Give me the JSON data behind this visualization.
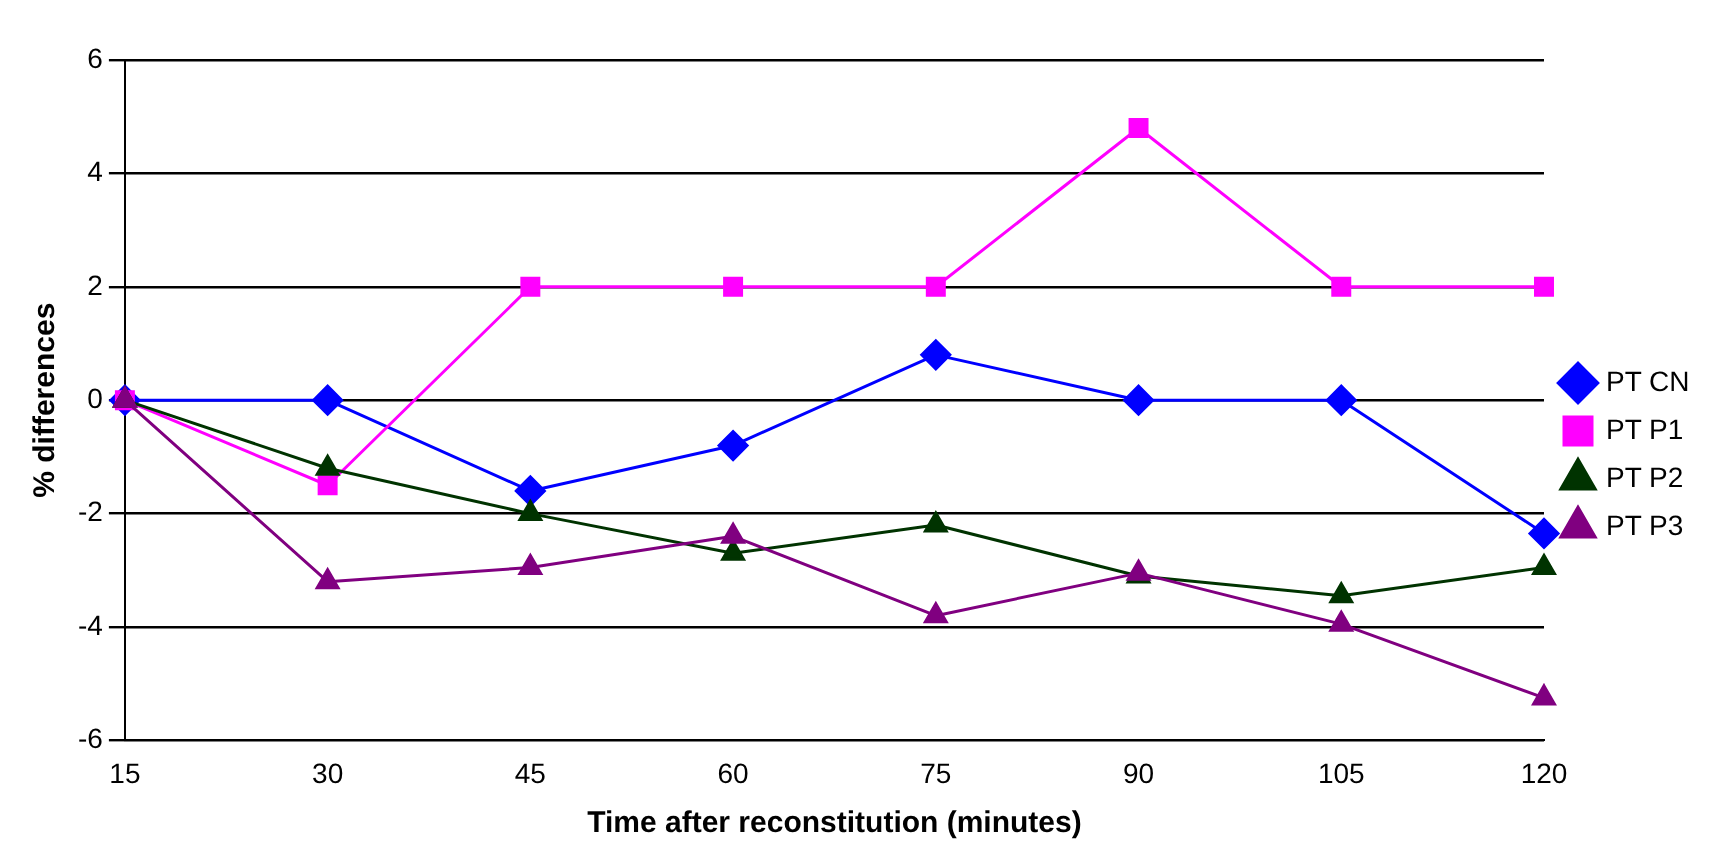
{
  "chart_data": {
    "type": "line",
    "xlabel": "Time after reconstitution (minutes)",
    "ylabel": "% differences",
    "categories": [
      "15",
      "30",
      "45",
      "60",
      "75",
      "90",
      "105",
      "120"
    ],
    "series": [
      {
        "name": "PT CN",
        "color": "#0000ff",
        "marker": "diamond",
        "values": [
          0,
          0,
          -1.6,
          -0.8,
          0.8,
          0,
          0,
          -2.35
        ]
      },
      {
        "name": "PT P1",
        "color": "#ff00ff",
        "marker": "square",
        "values": [
          0,
          -1.5,
          2,
          2,
          2,
          4.8,
          2,
          2
        ]
      },
      {
        "name": "PT P2",
        "color": "#003300",
        "marker": "triangle",
        "values": [
          0,
          -1.2,
          -2,
          -2.7,
          -2.2,
          -3.1,
          -3.45,
          -2.95
        ]
      },
      {
        "name": "PT P3",
        "color": "#800080",
        "marker": "triangle",
        "values": [
          0,
          -3.2,
          -2.95,
          -2.4,
          -3.8,
          -3.05,
          -3.95,
          -5.25
        ]
      }
    ],
    "ylim": [
      -6,
      6
    ],
    "yticks": [
      -6,
      -4,
      -2,
      0,
      2,
      4,
      6
    ],
    "grid": "y",
    "legend": "right",
    "line_style": "solid"
  }
}
